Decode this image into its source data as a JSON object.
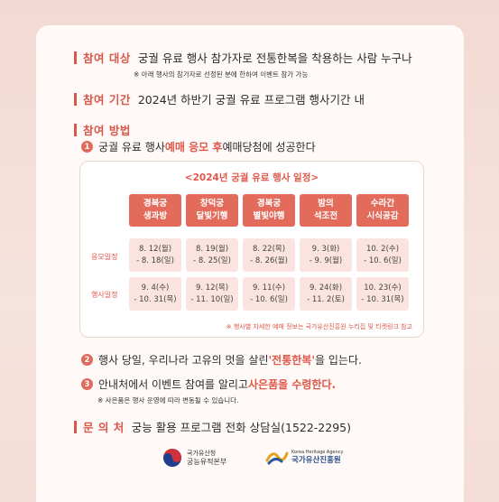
{
  "target": {
    "label": "참여 대상",
    "text": "궁궐 유료 행사 참가자로 전통한복을 착용하는 사람 누구나",
    "note": "※ 아래 행사의 참가자로 선정된 분에 한하여 이벤트 참가 가능"
  },
  "period": {
    "label": "참여 기간",
    "text": "2024년 하반기 궁궐 유료 프로그램 행사기간 내"
  },
  "method": {
    "label": "참여 방법",
    "step1": {
      "num": "1",
      "pre": "궁궐 유료 행사 ",
      "highlight": "예매 응모 후",
      "post": " 예매당첨에 성공한다"
    },
    "step2": {
      "num": "2",
      "pre": "행사 당일, 우리나라 고유의 멋을 살린 ",
      "highlight": "'전통한복'",
      "post": "을 입는다."
    },
    "step3": {
      "num": "3",
      "pre": "안내처에서 이벤트 참여를 알리고 ",
      "highlight": "사은품을 수령한다.",
      "note": "※ 사은품은 행사 운영에 따라 변동될 수 있습니다."
    }
  },
  "schedule": {
    "title": "<2024년 궁궐 유료 행사 일정>",
    "row_labels": {
      "apply": "응모일정",
      "event": "행사일정"
    },
    "events": [
      {
        "name1": "경복궁",
        "name2": "생과방",
        "apply1": "8. 12(월)",
        "apply2": "- 8. 18(일)",
        "event1": "9. 4(수)",
        "event2": "- 10. 31(목)"
      },
      {
        "name1": "창덕궁",
        "name2": "달빛기행",
        "apply1": "8. 19(월)",
        "apply2": "- 8. 25(일)",
        "event1": "9. 12(목)",
        "event2": "- 11. 10(일)"
      },
      {
        "name1": "경복궁",
        "name2": "별빛야행",
        "apply1": "8. 22(목)",
        "apply2": "- 8. 26(월)",
        "event1": "9. 11(수)",
        "event2": "- 10. 6(일)"
      },
      {
        "name1": "밤의",
        "name2": "석조전",
        "apply1": "9. 3(화)",
        "apply2": "- 9. 9(월)",
        "event1": "9. 24(화)",
        "event2": "- 11. 2(토)"
      },
      {
        "name1": "수라간",
        "name2": "시식공감",
        "apply1": "10. 2(수)",
        "apply2": "- 10. 6(일)",
        "event1": "10. 23(수)",
        "event2": "- 10. 31(목)"
      }
    ],
    "note": "※ 행사별 자세한 예매 정보는 국가유산진흥원 누리집 및 티켓링크 참고"
  },
  "contact": {
    "label": "문 의 처",
    "text": "궁능 활용 프로그램 전화 상담실(1522-2295)"
  },
  "footer": {
    "logo1_line1": "국가유산청",
    "logo1_line2": "궁능유적본부",
    "logo2_line1": "Korea Heritage Agency",
    "logo2_line2": "국가유산진흥원"
  },
  "colors": {
    "accent": "#d9584b",
    "header_cell": "#e26b5c",
    "data_cell": "#fbe4df",
    "background": "#f3d9d2"
  }
}
